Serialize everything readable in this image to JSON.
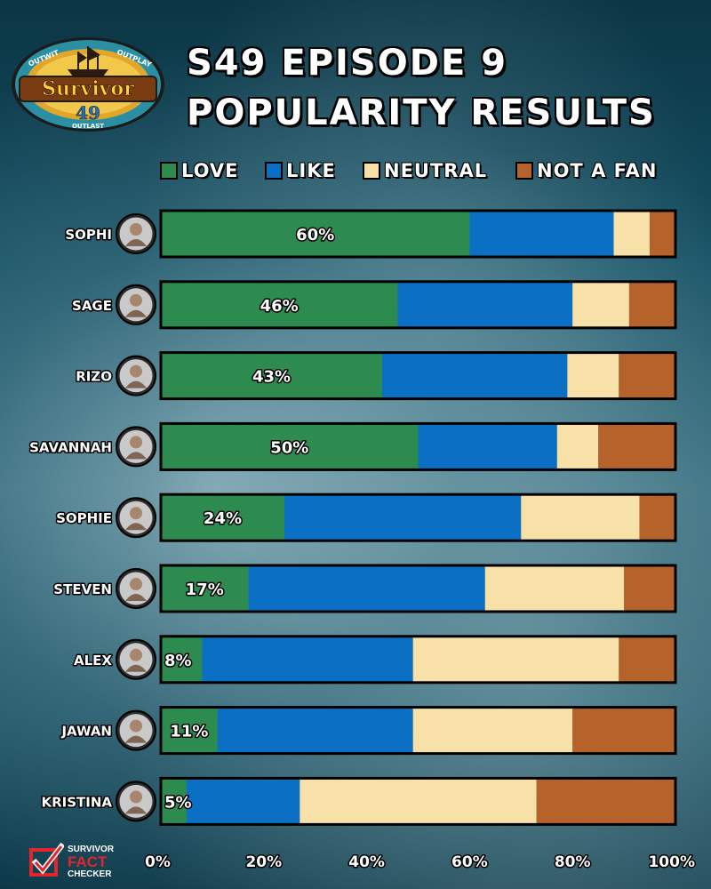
{
  "logo": {
    "top_text_left": "OUTWIT",
    "top_text_right": "OUTPLAY",
    "name": "Survivor",
    "number": "49",
    "bottom_text": "OUTLAST",
    "icon": "pirate-ship-icon"
  },
  "title": {
    "line1": "S49 EPISODE 9",
    "line2": "POPULARITY RESULTS"
  },
  "colors": {
    "love": "#2e8b50",
    "like": "#0b6fc4",
    "neutral": "#f8e1a8",
    "not_a_fan": "#b5622b"
  },
  "legend": [
    {
      "key": "love",
      "label": "LOVE"
    },
    {
      "key": "like",
      "label": "LIKE"
    },
    {
      "key": "neutral",
      "label": "NEUTRAL"
    },
    {
      "key": "not_a_fan",
      "label": "NOT A FAN"
    }
  ],
  "chart_data": {
    "type": "bar",
    "orientation": "horizontal",
    "stacked": true,
    "categories": [
      "SOPHI",
      "SAGE",
      "RIZO",
      "SAVANNAH",
      "SOPHIE",
      "STEVEN",
      "ALEX",
      "JAWAN",
      "KRISTINA"
    ],
    "series": [
      {
        "name": "LOVE",
        "values": [
          60,
          46,
          43,
          50,
          24,
          17,
          8,
          11,
          5
        ]
      },
      {
        "name": "LIKE",
        "values": [
          28,
          34,
          36,
          27,
          46,
          46,
          41,
          38,
          22
        ]
      },
      {
        "name": "NEUTRAL",
        "values": [
          7,
          11,
          10,
          8,
          23,
          27,
          40,
          31,
          46
        ]
      },
      {
        "name": "NOT A FAN",
        "values": [
          5,
          9,
          11,
          15,
          7,
          10,
          11,
          20,
          27
        ]
      }
    ],
    "love_labels": [
      "60%",
      "46%",
      "43%",
      "50%",
      "24%",
      "17%",
      "8%",
      "11%",
      "5%"
    ],
    "x_ticks": [
      "0%",
      "20%",
      "40%",
      "60%",
      "80%",
      "100%"
    ],
    "xlim": [
      0,
      100
    ],
    "legend_position": "top"
  },
  "footer": {
    "line1": "SURVIVOR",
    "line2": "FACT",
    "line3": "CHECKER",
    "icon": "checkmark-box-icon"
  }
}
